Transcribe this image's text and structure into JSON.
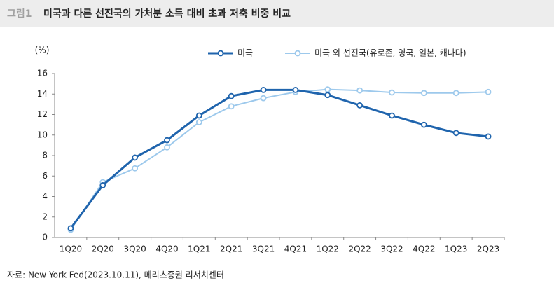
{
  "chart_data": {
    "type": "line",
    "figure_label": "그림1",
    "title": "미국과 다른 선진국의 가처분 소득 대비 초과 저축 비중 비교",
    "y_unit": "(%)",
    "source": "자료: New York Fed(2023.10.11), 메리츠증권 리서치센터",
    "categories": [
      "1Q20",
      "2Q20",
      "3Q20",
      "4Q20",
      "1Q21",
      "2Q21",
      "3Q21",
      "4Q21",
      "1Q22",
      "2Q22",
      "3Q22",
      "4Q22",
      "1Q23",
      "2Q23"
    ],
    "series": [
      {
        "name": "미국",
        "color": "#1f64ad",
        "values": [
          0.9,
          5.1,
          7.8,
          9.5,
          11.9,
          13.8,
          14.4,
          14.4,
          13.9,
          12.9,
          11.9,
          11.0,
          10.2,
          9.85
        ]
      },
      {
        "name": "미국 외 선진국(유로존, 영국, 일본, 캐나다)",
        "color": "#9dc9ec",
        "values": [
          0.75,
          5.4,
          6.75,
          8.8,
          11.25,
          12.8,
          13.6,
          14.2,
          14.45,
          14.35,
          14.15,
          14.1,
          14.1,
          14.2
        ]
      }
    ],
    "ylim": [
      0,
      16
    ],
    "yticks": [
      0,
      2,
      4,
      6,
      8,
      10,
      12,
      14,
      16
    ],
    "grid": false
  }
}
